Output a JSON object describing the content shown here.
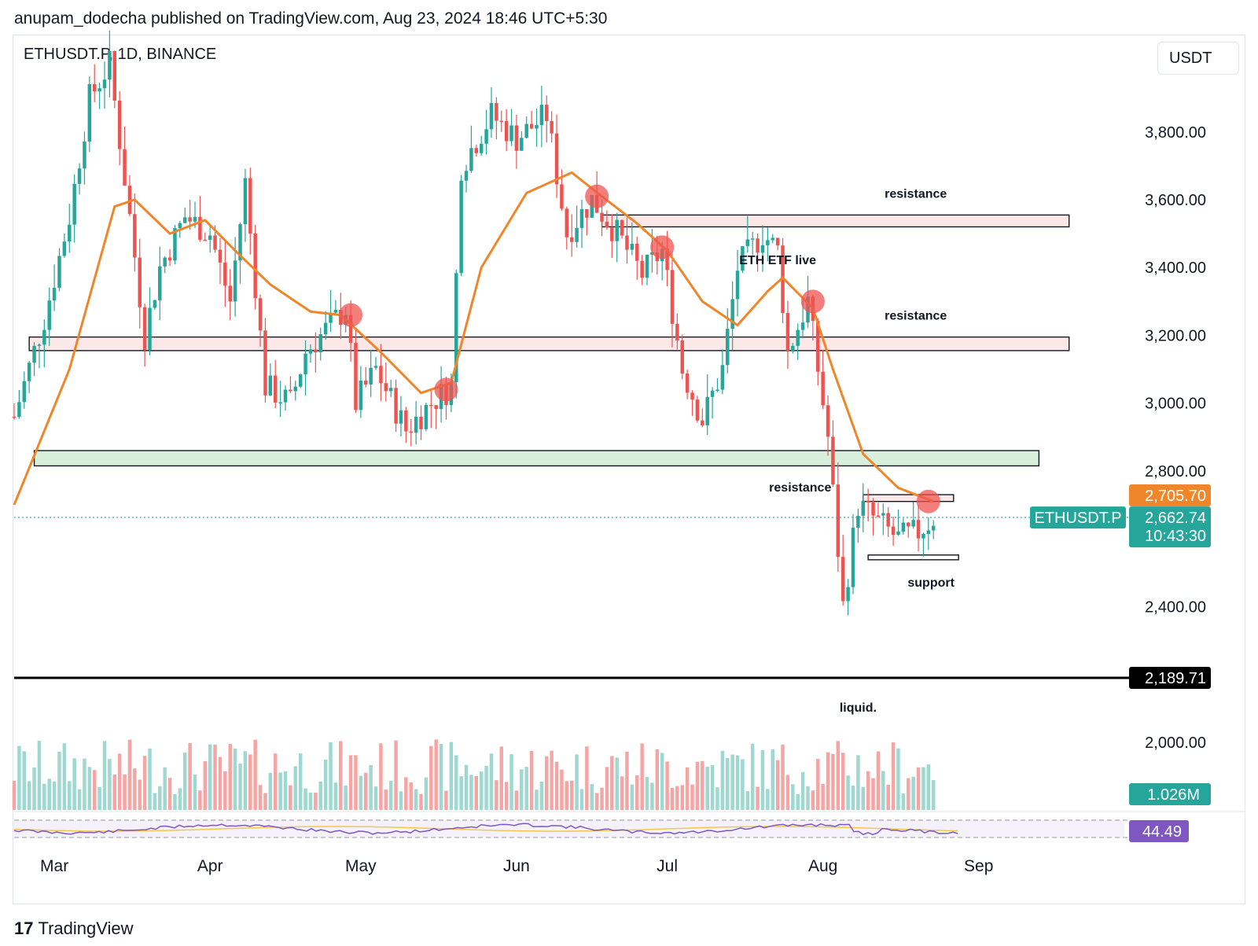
{
  "header": {
    "byline": "anupam_dodecha published on TradingView.com, Aug 23, 2024 18:46 UTC+5:30"
  },
  "symbol_info": "ETHUSDT.P, 1D, BINANCE",
  "currency_unit": "USDT",
  "footer": {
    "logo_mark": "17",
    "brand": "TradingView"
  },
  "colors": {
    "up": "#26a69a",
    "down": "#ef5350",
    "ema": "#f0862a",
    "rsi": "#7e57c2",
    "resistance_fill": "#fde8e8",
    "support_fill": "#d8efdb",
    "liquidation_line": "#000000"
  },
  "chart_data": {
    "type": "candlestick",
    "symbol": "ETHUSDT.P",
    "timeframe": "1D",
    "exchange": "BINANCE",
    "ylim": [
      1800,
      4050
    ],
    "y_ticks": [
      "3,800.00",
      "3,600.00",
      "3,400.00",
      "3,200.00",
      "3,000.00",
      "2,800.00",
      "2,400.00",
      "2,000.00"
    ],
    "y_tick_values": [
      3800,
      3600,
      3400,
      3200,
      3000,
      2800,
      2400,
      2000
    ],
    "x_ticks": [
      "Mar",
      "Apr",
      "May",
      "Jun",
      "Jul",
      "Aug",
      "Sep"
    ],
    "x_tick_dates": [
      "2024-03-01",
      "2024-04-01",
      "2024-05-01",
      "2024-06-01",
      "2024-07-01",
      "2024-08-01",
      "2024-09-01"
    ],
    "date_range": [
      "2024-02-22",
      "2024-09-30"
    ],
    "price_anchors": [
      [
        "2024-02-22",
        2960
      ],
      [
        "2024-02-28",
        3250
      ],
      [
        "2024-03-04",
        3550
      ],
      [
        "2024-03-08",
        3900
      ],
      [
        "2024-03-12",
        4000
      ],
      [
        "2024-03-16",
        3550
      ],
      [
        "2024-03-19",
        3200
      ],
      [
        "2024-03-22",
        3400
      ],
      [
        "2024-03-27",
        3550
      ],
      [
        "2024-04-01",
        3500
      ],
      [
        "2024-04-05",
        3300
      ],
      [
        "2024-04-08",
        3650
      ],
      [
        "2024-04-12",
        3050
      ],
      [
        "2024-04-17",
        3000
      ],
      [
        "2024-04-20",
        3150
      ],
      [
        "2024-04-23",
        3200
      ],
      [
        "2024-04-28",
        3280
      ],
      [
        "2024-04-30",
        3000
      ],
      [
        "2024-05-04",
        3100
      ],
      [
        "2024-05-10",
        2920
      ],
      [
        "2024-05-15",
        3000
      ],
      [
        "2024-05-19",
        3050
      ],
      [
        "2024-05-21",
        3700
      ],
      [
        "2024-05-25",
        3800
      ],
      [
        "2024-05-27",
        3850
      ],
      [
        "2024-06-01",
        3780
      ],
      [
        "2024-06-07",
        3850
      ],
      [
        "2024-06-11",
        3500
      ],
      [
        "2024-06-16",
        3600
      ],
      [
        "2024-06-21",
        3500
      ],
      [
        "2024-06-26",
        3380
      ],
      [
        "2024-06-30",
        3450
      ],
      [
        "2024-07-04",
        3100
      ],
      [
        "2024-07-08",
        2950
      ],
      [
        "2024-07-12",
        3100
      ],
      [
        "2024-07-15",
        3400
      ],
      [
        "2024-07-20",
        3500
      ],
      [
        "2024-07-23",
        3450
      ],
      [
        "2024-07-25",
        3150
      ],
      [
        "2024-07-29",
        3300
      ],
      [
        "2024-08-02",
        2900
      ],
      [
        "2024-08-05",
        2400
      ],
      [
        "2024-08-08",
        2700
      ],
      [
        "2024-08-12",
        2650
      ],
      [
        "2024-08-16",
        2600
      ],
      [
        "2024-08-20",
        2620
      ],
      [
        "2024-08-23",
        2662
      ]
    ],
    "ema_line": {
      "label": "2,705.70",
      "points": [
        [
          "2024-02-22",
          2700
        ],
        [
          "2024-03-04",
          3100
        ],
        [
          "2024-03-13",
          3580
        ],
        [
          "2024-03-17",
          3600
        ],
        [
          "2024-03-24",
          3500
        ],
        [
          "2024-03-31",
          3540
        ],
        [
          "2024-04-06",
          3450
        ],
        [
          "2024-04-13",
          3350
        ],
        [
          "2024-04-21",
          3270
        ],
        [
          "2024-04-27",
          3260
        ],
        [
          "2024-05-05",
          3150
        ],
        [
          "2024-05-13",
          3030
        ],
        [
          "2024-05-19",
          3060
        ],
        [
          "2024-05-25",
          3400
        ],
        [
          "2024-06-03",
          3620
        ],
        [
          "2024-06-12",
          3680
        ],
        [
          "2024-06-18",
          3610
        ],
        [
          "2024-06-25",
          3530
        ],
        [
          "2024-07-01",
          3450
        ],
        [
          "2024-07-08",
          3300
        ],
        [
          "2024-07-15",
          3230
        ],
        [
          "2024-07-21",
          3330
        ],
        [
          "2024-07-24",
          3370
        ],
        [
          "2024-07-30",
          3280
        ],
        [
          "2024-08-03",
          3100
        ],
        [
          "2024-08-09",
          2850
        ],
        [
          "2024-08-16",
          2750
        ],
        [
          "2024-08-23",
          2710
        ]
      ]
    },
    "zones": [
      {
        "label": "resistance",
        "kind": "resistance",
        "from_date": "2024-06-18",
        "to_date": "2024-09-19",
        "low": 3520,
        "high": 3555
      },
      {
        "label": "resistance",
        "kind": "resistance",
        "from_date": "2024-02-25",
        "to_date": "2024-09-19",
        "low": 3155,
        "high": 3195
      },
      {
        "label": "",
        "kind": "support",
        "from_date": "2024-02-26",
        "to_date": "2024-09-13",
        "low": 2815,
        "high": 2860
      },
      {
        "label": "resistance",
        "kind": "resistance",
        "from_date": "2024-08-09",
        "to_date": "2024-08-27",
        "low": 2710,
        "high": 2730
      },
      {
        "label": "support",
        "kind": "support_box",
        "from_date": "2024-08-10",
        "to_date": "2024-08-28",
        "low": 2538,
        "high": 2552
      }
    ],
    "rejection_markers": [
      [
        "2024-04-29",
        3260
      ],
      [
        "2024-05-18",
        3040
      ],
      [
        "2024-06-17",
        3610
      ],
      [
        "2024-06-30",
        3460
      ],
      [
        "2024-07-30",
        3300
      ],
      [
        "2024-08-22",
        2710
      ]
    ],
    "annotations": [
      {
        "text": "ETH ETF live",
        "date": "2024-07-23",
        "price": 3410
      },
      {
        "text": "liquid.",
        "date": "2024-08-08",
        "price": 2090
      }
    ],
    "liquidation_level": {
      "value": 2189.71,
      "label": "2,189.71"
    },
    "current_price": {
      "symbol": "ETHUSDT.P",
      "label": "2,662.74",
      "value": 2662.74,
      "countdown": "10:43:30"
    },
    "volume": {
      "last_label": "1.026M",
      "values_unitless": true
    },
    "rsi": {
      "value_label": "44.49"
    }
  }
}
